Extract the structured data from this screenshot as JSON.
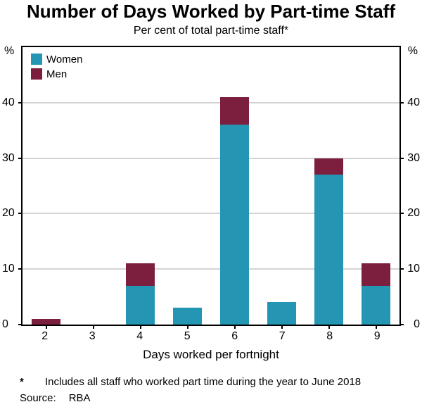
{
  "title": "Number of Days Worked by Part-time Staff",
  "subtitle": "Per cent of total part-time staff*",
  "chart_data": {
    "type": "bar",
    "stacked": true,
    "categories": [
      "2",
      "3",
      "4",
      "5",
      "6",
      "7",
      "8",
      "9"
    ],
    "series": [
      {
        "name": "Women",
        "color": "#2496B3",
        "values": [
          0,
          0,
          7,
          3,
          36,
          4,
          27,
          7
        ]
      },
      {
        "name": "Men",
        "color": "#7C1E3E",
        "values": [
          1,
          0,
          4,
          0,
          5,
          0,
          3,
          4
        ]
      }
    ],
    "title": "Number of Days Worked by Part-time Staff",
    "subtitle": "Per cent of total part-time staff*",
    "xlabel": "Days worked per fortnight",
    "y_unit": "%",
    "yticks": [
      0,
      10,
      20,
      30,
      40
    ],
    "ylim": [
      0,
      50
    ],
    "grid": "horizontal",
    "legend_position": "top-left"
  },
  "footnote": {
    "marker": "*",
    "text": "Includes all staff who worked part time during the year to June 2018"
  },
  "source": {
    "label": "Source:",
    "value": "RBA"
  }
}
